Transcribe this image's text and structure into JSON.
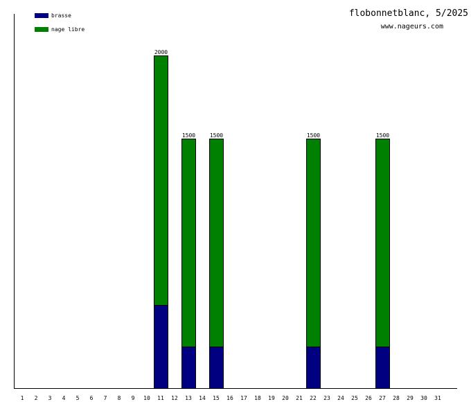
{
  "chart_data": {
    "type": "bar",
    "stacked": true,
    "title": "flobonnetblanc, 5/2025",
    "subtitle": "www.nageurs.com",
    "categories": [
      "1",
      "2",
      "3",
      "4",
      "5",
      "6",
      "7",
      "8",
      "9",
      "10",
      "11",
      "12",
      "13",
      "14",
      "15",
      "16",
      "17",
      "18",
      "19",
      "20",
      "21",
      "22",
      "23",
      "24",
      "25",
      "26",
      "27",
      "28",
      "29",
      "30",
      "31"
    ],
    "series": [
      {
        "name": "brasse",
        "color": "#000080",
        "values": [
          0,
          0,
          0,
          0,
          0,
          0,
          0,
          0,
          0,
          0,
          500,
          0,
          250,
          0,
          250,
          0,
          0,
          0,
          0,
          0,
          0,
          250,
          0,
          0,
          0,
          0,
          250,
          0,
          0,
          0,
          0
        ]
      },
      {
        "name": "nage libre",
        "color": "#008000",
        "values": [
          0,
          0,
          0,
          0,
          0,
          0,
          0,
          0,
          0,
          0,
          1500,
          0,
          1250,
          0,
          1250,
          0,
          0,
          0,
          0,
          0,
          0,
          1250,
          0,
          0,
          0,
          0,
          1250,
          0,
          0,
          0,
          0
        ]
      }
    ],
    "data_labels": {
      "11": "2000",
      "13": "1500",
      "15": "1500",
      "22": "1500",
      "27": "1500"
    },
    "ylim": [
      0,
      2250
    ],
    "legend_position": "top-left",
    "grid": false
  }
}
